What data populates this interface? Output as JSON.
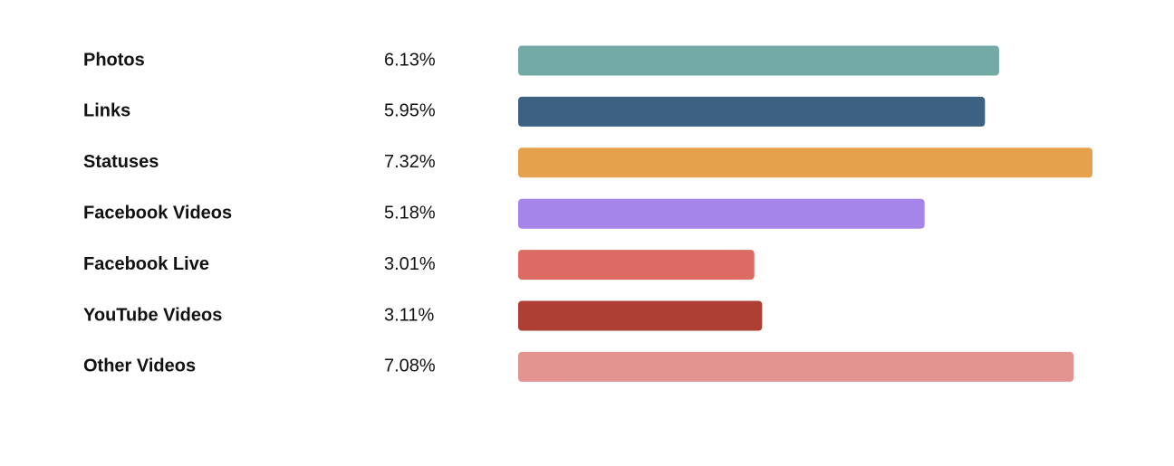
{
  "chart_data": {
    "type": "bar",
    "orientation": "horizontal",
    "categories": [
      "Photos",
      "Links",
      "Statuses",
      "Facebook Videos",
      "Facebook Live",
      "YouTube Videos",
      "Other Videos"
    ],
    "values": [
      6.13,
      5.95,
      7.32,
      5.18,
      3.01,
      3.11,
      7.08
    ],
    "value_labels": [
      "6.13%",
      "5.95%",
      "7.32%",
      "5.18%",
      "3.01%",
      "3.11%",
      "7.08%"
    ],
    "colors": [
      "#72aaa6",
      "#3d6180",
      "#e5a14c",
      "#a585e9",
      "#db6b63",
      "#ad3f34",
      "#e39490"
    ]
  }
}
